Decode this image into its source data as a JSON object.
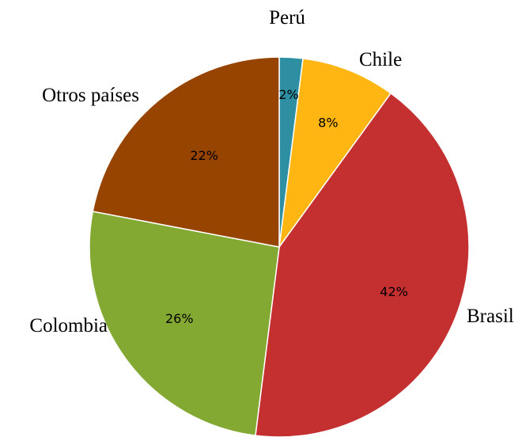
{
  "chart_data": {
    "type": "pie",
    "slices": [
      {
        "label": "Perú",
        "value": 2,
        "value_label": "2%",
        "color": "#2e8fa3"
      },
      {
        "label": "Chile",
        "value": 8,
        "value_label": "8%",
        "color": "#ffb612"
      },
      {
        "label": "Brasil",
        "value": 42,
        "value_label": "42%",
        "color": "#c42f30"
      },
      {
        "label": "Colombia",
        "value": 26,
        "value_label": "26%",
        "color": "#84a933"
      },
      {
        "label": "Otros países",
        "value": 22,
        "value_label": "22%",
        "color": "#974400"
      }
    ],
    "start_angle_deg": 0,
    "direction": "clockwise",
    "slice_border_color": "#ffffff"
  }
}
